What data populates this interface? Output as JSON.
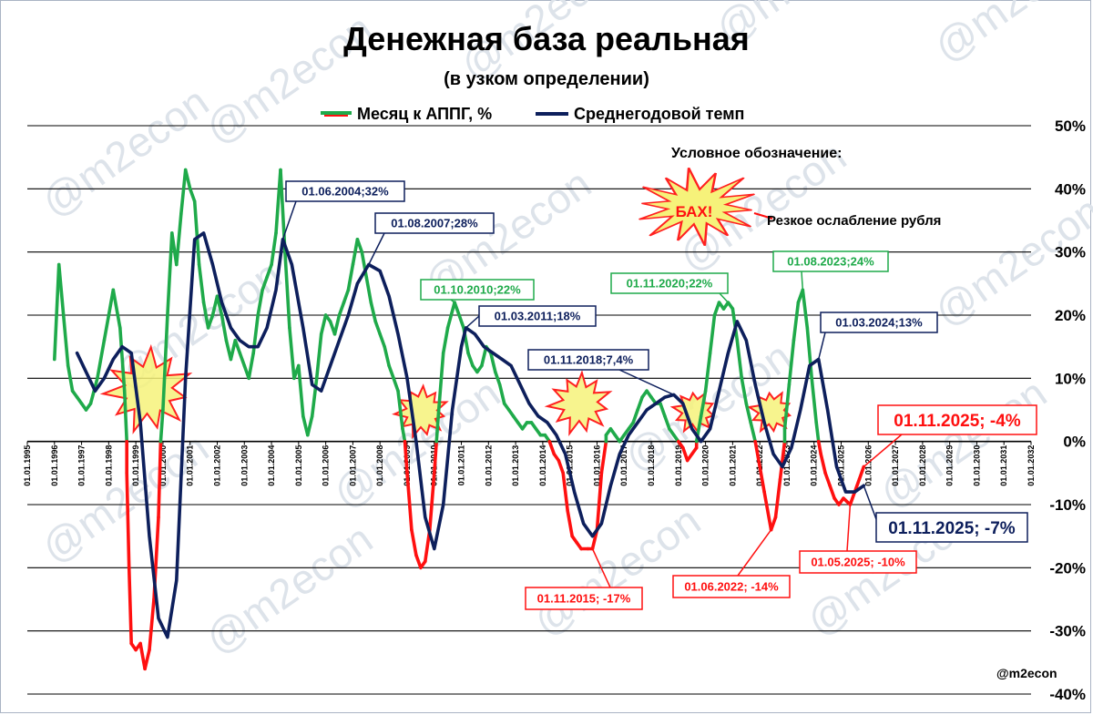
{
  "colors": {
    "green": "#1faa4a",
    "red": "#ff1010",
    "navy": "#0d1f5c",
    "burst_fill": "#f6f27a",
    "burst_stroke": "#ff2020",
    "grid": "#000000"
  },
  "legend": {
    "monthly_label": "Месяц к АППГ, %",
    "average_label": "Среднегодовой темп"
  },
  "key": {
    "heading": "Условное обозначение:",
    "burst_text": "БАХ!",
    "burst_desc": "Резкое ослабление рубля"
  },
  "watermark": "@m2econ",
  "signature": "@m2econ",
  "chart_data": {
    "type": "line",
    "title": "Денежная база реальная",
    "subtitle": "(в узком определении)",
    "xlabel": "",
    "ylabel": "",
    "x_range": [
      "1995-01-01",
      "2032-01-01"
    ],
    "ylim": [
      -40,
      50
    ],
    "y_ticks": [
      50,
      40,
      30,
      20,
      10,
      0,
      -10,
      -20,
      -30,
      -40
    ],
    "y_tick_labels": [
      "50%",
      "40%",
      "30%",
      "20%",
      "10%",
      "0%",
      "-10%",
      "-20%",
      "-30%",
      "-40%"
    ],
    "x_tick_labels": [
      "01.01.1995",
      "01.01.1996",
      "01.01.1997",
      "01.01.1998",
      "01.01.1999",
      "01.01.2000",
      "01.01.2001",
      "01.01.2002",
      "01.01.2003",
      "01.01.2004",
      "01.01.2005",
      "01.01.2006",
      "01.01.2007",
      "01.01.2008",
      "01.01.2009",
      "01.01.2010",
      "01.01.2011",
      "01.01.2012",
      "01.01.2013",
      "01.01.2014",
      "01.01.2015",
      "01.01.2016",
      "01.01.2017",
      "01.01.2018",
      "01.01.2019",
      "01.01.2020",
      "01.01.2021",
      "01.01.2022",
      "01.01.2023",
      "01.01.2024",
      "01.01.2025",
      "01.01.2026",
      "01.01.2027",
      "01.01.2028",
      "01.01.2029",
      "01.01.2030",
      "01.01.2031",
      "01.01.2032"
    ],
    "grid": true,
    "legend_position": "top",
    "series": [
      {
        "name": "Месяц к АППГ, %",
        "colors_note": "green above 0, red below 0",
        "points": [
          [
            "1996-01",
            13
          ],
          [
            "1996-03",
            28
          ],
          [
            "1996-05",
            20
          ],
          [
            "1996-07",
            12
          ],
          [
            "1996-09",
            8
          ],
          [
            "1996-11",
            7
          ],
          [
            "1997-01",
            6
          ],
          [
            "1997-03",
            5
          ],
          [
            "1997-05",
            6
          ],
          [
            "1997-08",
            10
          ],
          [
            "1997-11",
            16
          ],
          [
            "1998-01",
            20
          ],
          [
            "1998-03",
            24
          ],
          [
            "1998-06",
            18
          ],
          [
            "1998-08",
            8
          ],
          [
            "1998-09",
            -5
          ],
          [
            "1998-10",
            -20
          ],
          [
            "1998-11",
            -32
          ],
          [
            "1999-01",
            -33
          ],
          [
            "1999-03",
            -32
          ],
          [
            "1999-05",
            -36
          ],
          [
            "1999-07",
            -33
          ],
          [
            "1999-09",
            -25
          ],
          [
            "1999-11",
            -12
          ],
          [
            "2000-01",
            5
          ],
          [
            "2000-03",
            20
          ],
          [
            "2000-05",
            33
          ],
          [
            "2000-07",
            28
          ],
          [
            "2000-09",
            36
          ],
          [
            "2000-11",
            43
          ],
          [
            "2001-01",
            40
          ],
          [
            "2001-03",
            38
          ],
          [
            "2001-05",
            28
          ],
          [
            "2001-07",
            22
          ],
          [
            "2001-09",
            18
          ],
          [
            "2001-11",
            20
          ],
          [
            "2002-01",
            23
          ],
          [
            "2002-03",
            20
          ],
          [
            "2002-05",
            16
          ],
          [
            "2002-07",
            13
          ],
          [
            "2002-09",
            16
          ],
          [
            "2002-11",
            14
          ],
          [
            "2003-01",
            12
          ],
          [
            "2003-03",
            10
          ],
          [
            "2003-05",
            14
          ],
          [
            "2003-07",
            20
          ],
          [
            "2003-09",
            24
          ],
          [
            "2003-11",
            26
          ],
          [
            "2004-01",
            28
          ],
          [
            "2004-03",
            33
          ],
          [
            "2004-05",
            43
          ],
          [
            "2004-07",
            30
          ],
          [
            "2004-09",
            18
          ],
          [
            "2004-11",
            10
          ],
          [
            "2005-01",
            12
          ],
          [
            "2005-03",
            4
          ],
          [
            "2005-05",
            1
          ],
          [
            "2005-07",
            4
          ],
          [
            "2005-09",
            10
          ],
          [
            "2005-11",
            17
          ],
          [
            "2006-01",
            20
          ],
          [
            "2006-03",
            19
          ],
          [
            "2006-05",
            17
          ],
          [
            "2006-07",
            20
          ],
          [
            "2006-09",
            22
          ],
          [
            "2006-11",
            24
          ],
          [
            "2007-01",
            28
          ],
          [
            "2007-03",
            32
          ],
          [
            "2007-05",
            30
          ],
          [
            "2007-07",
            26
          ],
          [
            "2007-09",
            22
          ],
          [
            "2007-11",
            19
          ],
          [
            "2008-01",
            17
          ],
          [
            "2008-03",
            15
          ],
          [
            "2008-05",
            12
          ],
          [
            "2008-07",
            10
          ],
          [
            "2008-09",
            8
          ],
          [
            "2008-11",
            2
          ],
          [
            "2009-01",
            -5
          ],
          [
            "2009-03",
            -14
          ],
          [
            "2009-05",
            -18
          ],
          [
            "2009-07",
            -20
          ],
          [
            "2009-09",
            -19
          ],
          [
            "2009-11",
            -14
          ],
          [
            "2010-01",
            -5
          ],
          [
            "2010-03",
            5
          ],
          [
            "2010-05",
            14
          ],
          [
            "2010-07",
            18
          ],
          [
            "2010-10",
            22
          ],
          [
            "2010-12",
            20
          ],
          [
            "2011-02",
            18
          ],
          [
            "2011-04",
            14
          ],
          [
            "2011-06",
            12
          ],
          [
            "2011-08",
            11
          ],
          [
            "2011-10",
            12
          ],
          [
            "2011-12",
            15
          ],
          [
            "2012-02",
            14
          ],
          [
            "2012-04",
            11
          ],
          [
            "2012-06",
            9
          ],
          [
            "2012-08",
            6
          ],
          [
            "2012-10",
            5
          ],
          [
            "2012-12",
            4
          ],
          [
            "2013-02",
            3
          ],
          [
            "2013-04",
            2
          ],
          [
            "2013-06",
            3
          ],
          [
            "2013-08",
            3
          ],
          [
            "2013-10",
            2
          ],
          [
            "2013-12",
            1
          ],
          [
            "2014-02",
            1
          ],
          [
            "2014-04",
            0
          ],
          [
            "2014-06",
            -2
          ],
          [
            "2014-08",
            -3
          ],
          [
            "2014-10",
            -5
          ],
          [
            "2014-12",
            -11
          ],
          [
            "2015-02",
            -15
          ],
          [
            "2015-04",
            -16
          ],
          [
            "2015-06",
            -17
          ],
          [
            "2015-09",
            -17
          ],
          [
            "2015-11",
            -17
          ],
          [
            "2016-01",
            -14
          ],
          [
            "2016-03",
            -5
          ],
          [
            "2016-05",
            1
          ],
          [
            "2016-07",
            2
          ],
          [
            "2016-09",
            1
          ],
          [
            "2016-11",
            0
          ],
          [
            "2017-01",
            1
          ],
          [
            "2017-03",
            2
          ],
          [
            "2017-05",
            3
          ],
          [
            "2017-07",
            5
          ],
          [
            "2017-09",
            7
          ],
          [
            "2017-11",
            8
          ],
          [
            "2018-01",
            7
          ],
          [
            "2018-03",
            6
          ],
          [
            "2018-05",
            6
          ],
          [
            "2018-07",
            4
          ],
          [
            "2018-09",
            2
          ],
          [
            "2018-11",
            1
          ],
          [
            "2019-01",
            0
          ],
          [
            "2019-03",
            -1
          ],
          [
            "2019-05",
            -3
          ],
          [
            "2019-07",
            -2
          ],
          [
            "2019-09",
            -1
          ],
          [
            "2019-11",
            4
          ],
          [
            "2020-01",
            8
          ],
          [
            "2020-03",
            14
          ],
          [
            "2020-05",
            20
          ],
          [
            "2020-07",
            22
          ],
          [
            "2020-09",
            21
          ],
          [
            "2020-11",
            22
          ],
          [
            "2021-01",
            21
          ],
          [
            "2021-03",
            16
          ],
          [
            "2021-05",
            10
          ],
          [
            "2021-07",
            6
          ],
          [
            "2021-09",
            3
          ],
          [
            "2021-11",
            0
          ],
          [
            "2022-01",
            -4
          ],
          [
            "2022-03",
            -8
          ],
          [
            "2022-06",
            -14
          ],
          [
            "2022-08",
            -12
          ],
          [
            "2022-10",
            -6
          ],
          [
            "2022-12",
            2
          ],
          [
            "2023-02",
            9
          ],
          [
            "2023-04",
            16
          ],
          [
            "2023-06",
            22
          ],
          [
            "2023-08",
            24
          ],
          [
            "2023-10",
            18
          ],
          [
            "2023-12",
            10
          ],
          [
            "2024-02",
            3
          ],
          [
            "2024-04",
            -2
          ],
          [
            "2024-06",
            -5
          ],
          [
            "2024-08",
            -7
          ],
          [
            "2024-10",
            -9
          ],
          [
            "2024-12",
            -10
          ],
          [
            "2025-02",
            -9
          ],
          [
            "2025-05",
            -10
          ],
          [
            "2025-07",
            -8
          ],
          [
            "2025-09",
            -6
          ],
          [
            "2025-11",
            -4
          ]
        ]
      },
      {
        "name": "Среднегодовой темп",
        "color_key": "navy",
        "points": [
          [
            "1996-11",
            14
          ],
          [
            "1997-03",
            11
          ],
          [
            "1997-07",
            8
          ],
          [
            "1997-11",
            10
          ],
          [
            "1998-03",
            13
          ],
          [
            "1998-07",
            15
          ],
          [
            "1998-11",
            14
          ],
          [
            "1999-03",
            3
          ],
          [
            "1999-07",
            -15
          ],
          [
            "1999-11",
            -28
          ],
          [
            "2000-03",
            -31
          ],
          [
            "2000-07",
            -22
          ],
          [
            "2000-11",
            10
          ],
          [
            "2001-03",
            32
          ],
          [
            "2001-07",
            33
          ],
          [
            "2001-11",
            28
          ],
          [
            "2002-03",
            22
          ],
          [
            "2002-07",
            18
          ],
          [
            "2002-11",
            16
          ],
          [
            "2003-03",
            15
          ],
          [
            "2003-07",
            15
          ],
          [
            "2003-11",
            18
          ],
          [
            "2004-03",
            24
          ],
          [
            "2004-06",
            32
          ],
          [
            "2004-10",
            28
          ],
          [
            "2005-03",
            18
          ],
          [
            "2005-07",
            9
          ],
          [
            "2005-11",
            8
          ],
          [
            "2006-03",
            12
          ],
          [
            "2006-07",
            16
          ],
          [
            "2006-11",
            20
          ],
          [
            "2007-03",
            25
          ],
          [
            "2007-08",
            28
          ],
          [
            "2008-01",
            27
          ],
          [
            "2008-05",
            23
          ],
          [
            "2008-09",
            17
          ],
          [
            "2009-01",
            10
          ],
          [
            "2009-05",
            0
          ],
          [
            "2009-09",
            -12
          ],
          [
            "2010-01",
            -17
          ],
          [
            "2010-05",
            -10
          ],
          [
            "2010-09",
            5
          ],
          [
            "2011-01",
            15
          ],
          [
            "2011-03",
            18
          ],
          [
            "2011-07",
            17
          ],
          [
            "2011-11",
            15
          ],
          [
            "2012-03",
            14
          ],
          [
            "2012-07",
            13
          ],
          [
            "2012-11",
            12
          ],
          [
            "2013-03",
            9
          ],
          [
            "2013-07",
            6
          ],
          [
            "2013-11",
            4
          ],
          [
            "2014-03",
            3
          ],
          [
            "2014-07",
            1
          ],
          [
            "2014-11",
            -2
          ],
          [
            "2015-03",
            -8
          ],
          [
            "2015-07",
            -13
          ],
          [
            "2015-11",
            -15
          ],
          [
            "2016-03",
            -13
          ],
          [
            "2016-07",
            -7
          ],
          [
            "2016-11",
            -2
          ],
          [
            "2017-03",
            1
          ],
          [
            "2017-07",
            3
          ],
          [
            "2017-11",
            5
          ],
          [
            "2018-03",
            6
          ],
          [
            "2018-07",
            7
          ],
          [
            "2018-11",
            7.4
          ],
          [
            "2019-03",
            6
          ],
          [
            "2019-07",
            2
          ],
          [
            "2019-11",
            0
          ],
          [
            "2020-03",
            2
          ],
          [
            "2020-07",
            8
          ],
          [
            "2020-11",
            14
          ],
          [
            "2021-03",
            19
          ],
          [
            "2021-07",
            16
          ],
          [
            "2021-11",
            9
          ],
          [
            "2022-03",
            3
          ],
          [
            "2022-07",
            -2
          ],
          [
            "2022-11",
            -4
          ],
          [
            "2023-03",
            -1
          ],
          [
            "2023-07",
            5
          ],
          [
            "2023-11",
            12
          ],
          [
            "2024-03",
            13
          ],
          [
            "2024-07",
            5
          ],
          [
            "2024-11",
            -4
          ],
          [
            "2025-03",
            -8
          ],
          [
            "2025-07",
            -8
          ],
          [
            "2025-11",
            -7
          ]
        ]
      }
    ],
    "annotations": [
      {
        "label": "01.06.2004;32%",
        "color_key": "navy"
      },
      {
        "label": "01.08.2007;28%",
        "color_key": "navy"
      },
      {
        "label": "01.10.2010;22%",
        "color_key": "green"
      },
      {
        "label": "01.03.2011;18%",
        "color_key": "navy"
      },
      {
        "label": "01.11.2018;7,4%",
        "color_key": "navy"
      },
      {
        "label": "01.11.2020;22%",
        "color_key": "green"
      },
      {
        "label": "01.08.2023;24%",
        "color_key": "green"
      },
      {
        "label": "01.03.2024;13%",
        "color_key": "navy"
      },
      {
        "label": "01.11.2025; -4%",
        "color_key": "red"
      },
      {
        "label": "01.11.2025; -7%",
        "color_key": "navy"
      },
      {
        "label": "01.11.2015; -17%",
        "color_key": "red"
      },
      {
        "label": "01.06.2022; -14%",
        "color_key": "red"
      },
      {
        "label": "01.05.2025; -10%",
        "color_key": "red"
      }
    ]
  }
}
